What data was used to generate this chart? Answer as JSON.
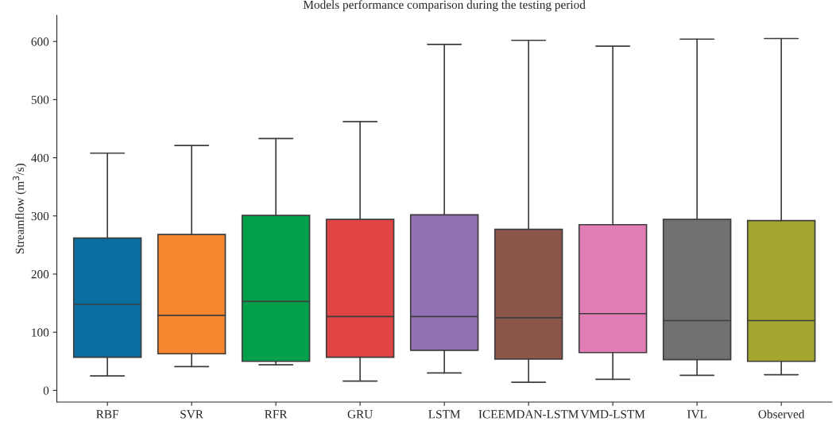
{
  "chart_data": {
    "type": "box",
    "title": "Models performance comparison during the testing period",
    "ylabel": "Streamflow (m$^{3}$/s)",
    "categories": [
      "RBF",
      "SVR",
      "RFR",
      "GRU",
      "LSTM",
      "ICEEMDAN-LSTM",
      "VMD-LSTM",
      "IVL",
      "Observed"
    ],
    "colors": [
      "#0a6fa0",
      "#f5852e",
      "#03a04b",
      "#e04444",
      "#9471b4",
      "#8c564b",
      "#e27cb6",
      "#717171",
      "#a3a62e"
    ],
    "boxes": [
      {
        "low": 25,
        "q1": 57,
        "median": 148,
        "q3": 262,
        "high": 408
      },
      {
        "low": 41,
        "q1": 63,
        "median": 129,
        "q3": 268,
        "high": 421
      },
      {
        "low": 44,
        "q1": 50,
        "median": 153,
        "q3": 301,
        "high": 433
      },
      {
        "low": 16,
        "q1": 57,
        "median": 127,
        "q3": 294,
        "high": 462
      },
      {
        "low": 30,
        "q1": 69,
        "median": 127,
        "q3": 302,
        "high": 595
      },
      {
        "low": 14,
        "q1": 54,
        "median": 125,
        "q3": 277,
        "high": 602
      },
      {
        "low": 19,
        "q1": 65,
        "median": 132,
        "q3": 285,
        "high": 592
      },
      {
        "low": 26,
        "q1": 53,
        "median": 120,
        "q3": 294,
        "high": 604
      },
      {
        "low": 27,
        "q1": 50,
        "median": 120,
        "q3": 292,
        "high": 605
      }
    ],
    "ylim": [
      -20,
      645
    ],
    "yticks": [
      0,
      100,
      200,
      300,
      400,
      500,
      600
    ],
    "grid": false
  }
}
